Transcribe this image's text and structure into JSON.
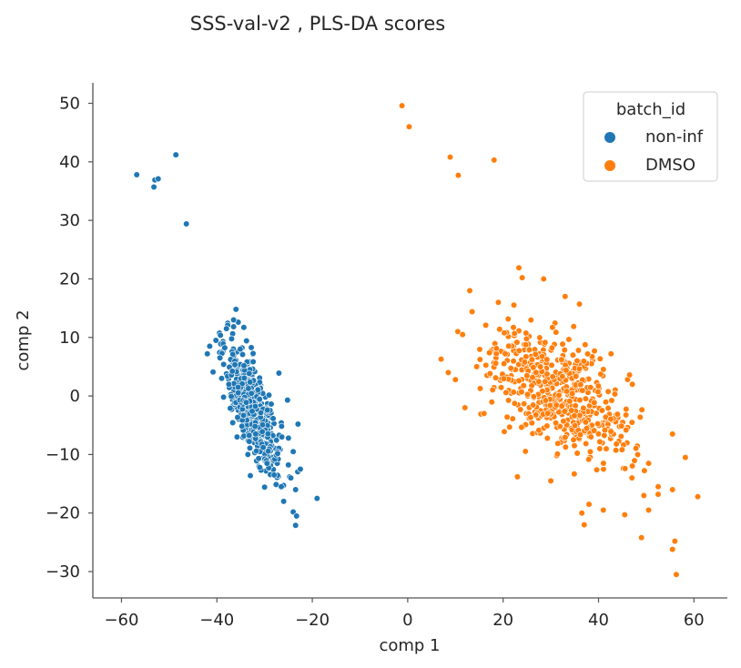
{
  "chart_data": {
    "type": "scatter",
    "title": "SSS-val-v2 , PLS-DA scores",
    "xlabel": "comp 1",
    "ylabel": "comp 2",
    "xlim": [
      -66,
      67
    ],
    "ylim": [
      -34.5,
      53.5
    ],
    "xticks": [
      -60,
      -40,
      -20,
      0,
      20,
      40,
      60
    ],
    "yticks": [
      -30,
      -20,
      -10,
      0,
      10,
      20,
      30,
      40,
      50
    ],
    "xtick_labels": [
      "−60",
      "−40",
      "−20",
      "0",
      "20",
      "40",
      "60"
    ],
    "ytick_labels": [
      "−30",
      "−20",
      "−10",
      "0",
      "10",
      "20",
      "30",
      "40",
      "50"
    ],
    "grid": false,
    "legend": {
      "title": "batch_id",
      "position": "top-right",
      "entries": [
        "non-inf",
        "DMSO"
      ]
    },
    "series": [
      {
        "name": "non-inf",
        "color": "#1f77b4",
        "points": [
          [
            -56.8,
            37.8
          ],
          [
            -53.0,
            36.9
          ],
          [
            -52.3,
            37.1
          ],
          [
            -53.2,
            35.7
          ],
          [
            -48.6,
            41.2
          ],
          [
            -46.4,
            29.4
          ],
          [
            -36.0,
            14.8
          ],
          [
            -36.5,
            13.0
          ],
          [
            -38.0,
            11.5
          ],
          [
            -40.2,
            9.5
          ],
          [
            -41.5,
            8.5
          ],
          [
            -42.0,
            7.2
          ],
          [
            -40.8,
            4.1
          ],
          [
            -39.0,
            3.0
          ],
          [
            -37.5,
            2.0
          ],
          [
            -38.6,
            -0.2
          ],
          [
            -37.2,
            -2.1
          ],
          [
            -27.0,
            3.9
          ],
          [
            -25.2,
            -0.7
          ],
          [
            -23.0,
            -4.8
          ],
          [
            -25.0,
            -7.2
          ],
          [
            -24.0,
            -9.5
          ],
          [
            -22.5,
            -12.5
          ],
          [
            -24.5,
            -14.0
          ],
          [
            -23.5,
            -16.0
          ],
          [
            -26.0,
            -18.0
          ],
          [
            -19.0,
            -17.5
          ],
          [
            -24.0,
            -19.8
          ],
          [
            -23.3,
            -20.5
          ],
          [
            -23.5,
            -22.1
          ],
          [
            -26.5,
            -15.5
          ],
          [
            -28.0,
            -13.5
          ],
          [
            -29.5,
            -11.5
          ],
          [
            -31.0,
            -12.2
          ],
          [
            -33.5,
            -10.0
          ]
        ],
        "cluster": {
          "center": [
            -32.4,
            -2.3
          ],
          "sd_x": 2.9,
          "sd_y": 5.6,
          "corr": -0.75,
          "x_range": [
            -39.5,
            -23.0
          ],
          "y_range": [
            -16.5,
            13.5
          ],
          "count": 560
        }
      },
      {
        "name": "DMSO",
        "color": "#ff7f0e",
        "points": [
          [
            -1.2,
            49.6
          ],
          [
            0.3,
            46.0
          ],
          [
            8.9,
            40.8
          ],
          [
            10.6,
            37.7
          ],
          [
            18.1,
            40.3
          ],
          [
            23.3,
            21.9
          ],
          [
            24.0,
            20.2
          ],
          [
            28.5,
            20.0
          ],
          [
            33.0,
            17.0
          ],
          [
            36.0,
            15.7
          ],
          [
            13.0,
            18.0
          ],
          [
            19.0,
            16.0
          ],
          [
            13.5,
            14.4
          ],
          [
            10.5,
            11.0
          ],
          [
            11.5,
            10.5
          ],
          [
            7.0,
            6.3
          ],
          [
            8.5,
            4.0
          ],
          [
            10.0,
            2.8
          ],
          [
            12.0,
            -2.0
          ],
          [
            16.0,
            -3.0
          ],
          [
            23.0,
            -13.8
          ],
          [
            30.0,
            -14.5
          ],
          [
            38.0,
            -18.5
          ],
          [
            36.5,
            -20.0
          ],
          [
            37.0,
            -22.0
          ],
          [
            41.0,
            -19.5
          ],
          [
            45.5,
            -20.3
          ],
          [
            49.0,
            -24.2
          ],
          [
            50.5,
            -19.5
          ],
          [
            49.5,
            -17.0
          ],
          [
            52.5,
            -15.5
          ],
          [
            52.5,
            -16.8
          ],
          [
            55.5,
            -16.0
          ],
          [
            60.8,
            -17.2
          ],
          [
            55.5,
            -26.2
          ],
          [
            56.0,
            -24.8
          ],
          [
            56.3,
            -30.5
          ],
          [
            58.2,
            -10.5
          ],
          [
            55.5,
            -6.5
          ],
          [
            50.5,
            -11.5
          ],
          [
            47.0,
            -14.0
          ],
          [
            46.5,
            3.6
          ]
        ],
        "cluster": {
          "center": [
            32.0,
            0.2
          ],
          "sd_x": 7.6,
          "sd_y": 5.6,
          "corr": -0.58,
          "x_range": [
            13.0,
            51.0
          ],
          "y_range": [
            -13.5,
            16.0
          ],
          "count": 560
        }
      }
    ]
  }
}
